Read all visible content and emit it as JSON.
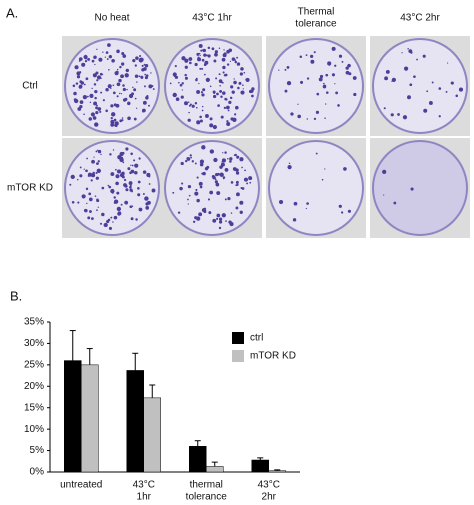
{
  "panel_a": {
    "label": "A.",
    "columns": [
      [
        "No heat"
      ],
      [
        "43°C 1hr"
      ],
      [
        "Thermal",
        "tolerance"
      ],
      [
        "43°C 2hr"
      ]
    ],
    "rows": [
      "Ctrl",
      "mTOR KD"
    ]
  },
  "chart_data": {
    "type": "bar",
    "panel_label": "B.",
    "categories": [
      [
        "untreated"
      ],
      [
        "43°C",
        "1hr"
      ],
      [
        "thermal",
        "tolerance"
      ],
      [
        "43°C",
        "2hr"
      ]
    ],
    "series": [
      {
        "name": "ctrl",
        "color": "#000000",
        "values": [
          26,
          23.7,
          6,
          2.8
        ],
        "errors": [
          7,
          4,
          1.3,
          0.5
        ]
      },
      {
        "name": "mTOR KD",
        "color": "#c0c0c0",
        "values": [
          25,
          17.3,
          1.3,
          0.3
        ],
        "errors": [
          3.8,
          3,
          1,
          0.2
        ]
      }
    ],
    "ylim": [
      0,
      35
    ],
    "yticks": [
      {
        "value": 0,
        "label": "0%"
      },
      {
        "value": 5,
        "label": "5%"
      },
      {
        "value": 10,
        "label": "10%"
      },
      {
        "value": 15,
        "label": "15%"
      },
      {
        "value": 20,
        "label": "20%"
      },
      {
        "value": 25,
        "label": "25%"
      },
      {
        "value": 30,
        "label": "30%"
      },
      {
        "value": 35,
        "label": "35%"
      }
    ],
    "legend": "upper right"
  }
}
